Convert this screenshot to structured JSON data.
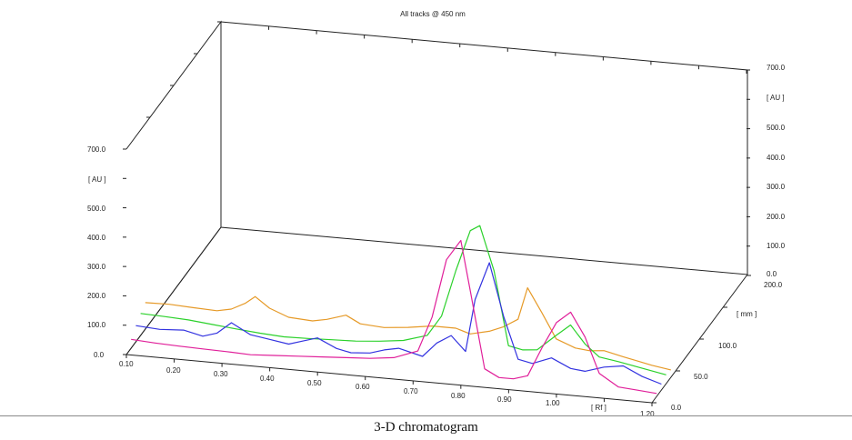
{
  "caption": "3-D chromatogram",
  "chart_data": {
    "type": "line",
    "title": "All tracks @ 450 nm",
    "view": "3d",
    "x_axis": {
      "label": "[ Rf ]",
      "range": [
        0.1,
        1.2
      ],
      "ticks": [
        "0.10",
        "0.20",
        "0.30",
        "0.40",
        "0.50",
        "0.60",
        "0.70",
        "0.80",
        "0.90",
        "1.00",
        "1.20"
      ]
    },
    "y_axis": {
      "label": "[ AU ]",
      "range": [
        0,
        700
      ],
      "ticks": [
        "0.0",
        "100.0",
        "200.0",
        "300.0",
        "400.0",
        "500.0",
        "700.0"
      ]
    },
    "depth_axis": {
      "label": "[ mm ]",
      "range": [
        0,
        200
      ],
      "ticks": [
        "0.0",
        "50.0",
        "100.0",
        "200.0"
      ]
    },
    "right_y_axis": {
      "label": "[ AU ]",
      "ticks": [
        "0.0",
        "100.0",
        "200.0",
        "300.0",
        "400.0",
        "500.0",
        "700.0"
      ]
    },
    "series": [
      {
        "color": "#e69a28",
        "depth": 40,
        "x": [
          0.1,
          0.15,
          0.2,
          0.25,
          0.28,
          0.31,
          0.33,
          0.36,
          0.4,
          0.45,
          0.48,
          0.52,
          0.55,
          0.6,
          0.65,
          0.7,
          0.75,
          0.78,
          0.82,
          0.85,
          0.88,
          0.9,
          0.93,
          0.96,
          1.0,
          1.03,
          1.06,
          1.1,
          1.13,
          1.16,
          1.2
        ],
        "y": [
          90,
          92,
          88,
          85,
          95,
          120,
          145,
          110,
          85,
          80,
          90,
          110,
          85,
          80,
          88,
          100,
          100,
          85,
          100,
          120,
          150,
          260,
          180,
          95,
          70,
          65,
          70,
          55,
          45,
          35,
          25
        ]
      },
      {
        "color": "#2bd12b",
        "depth": 30,
        "x": [
          0.1,
          0.15,
          0.2,
          0.25,
          0.3,
          0.35,
          0.4,
          0.45,
          0.5,
          0.55,
          0.6,
          0.65,
          0.7,
          0.73,
          0.76,
          0.79,
          0.81,
          0.84,
          0.87,
          0.9,
          0.93,
          0.97,
          1.0,
          1.03,
          1.06,
          1.1,
          1.15,
          1.2
        ],
        "y": [
          75,
          72,
          68,
          60,
          52,
          45,
          40,
          42,
          45,
          48,
          55,
          65,
          90,
          160,
          320,
          460,
          480,
          330,
          80,
          70,
          75,
          130,
          170,
          110,
          70,
          60,
          45,
          30
        ]
      },
      {
        "color": "#3333e0",
        "depth": 20,
        "x": [
          0.1,
          0.15,
          0.2,
          0.24,
          0.27,
          0.3,
          0.34,
          0.38,
          0.42,
          0.45,
          0.48,
          0.52,
          0.55,
          0.59,
          0.62,
          0.65,
          0.7,
          0.73,
          0.76,
          0.79,
          0.81,
          0.84,
          0.87,
          0.9,
          0.93,
          0.97,
          1.01,
          1.04,
          1.08,
          1.12,
          1.16,
          1.2
        ],
        "y": [
          55,
          50,
          55,
          40,
          55,
          95,
          60,
          50,
          40,
          55,
          70,
          40,
          30,
          35,
          50,
          60,
          40,
          90,
          120,
          70,
          250,
          380,
          200,
          60,
          50,
          75,
          45,
          40,
          60,
          70,
          40,
          20
        ]
      },
      {
        "color": "#e0209a",
        "depth": 10,
        "x": [
          0.1,
          0.15,
          0.2,
          0.25,
          0.3,
          0.35,
          0.4,
          0.45,
          0.5,
          0.55,
          0.6,
          0.65,
          0.7,
          0.73,
          0.76,
          0.79,
          0.81,
          0.84,
          0.87,
          0.9,
          0.93,
          0.96,
          0.99,
          1.02,
          1.05,
          1.08,
          1.12,
          1.16,
          1.2
        ],
        "y": [
          30,
          25,
          22,
          20,
          18,
          15,
          20,
          25,
          30,
          35,
          40,
          50,
          80,
          200,
          400,
          470,
          300,
          40,
          15,
          15,
          30,
          130,
          220,
          260,
          180,
          60,
          20,
          15,
          10
        ]
      }
    ]
  }
}
